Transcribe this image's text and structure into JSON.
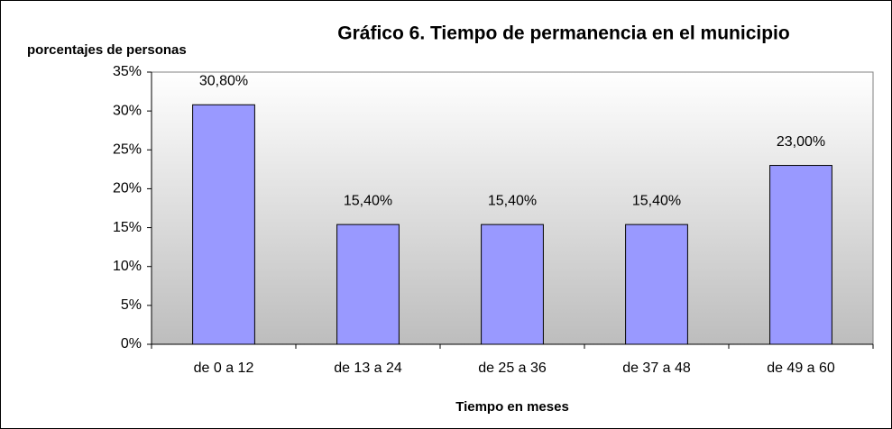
{
  "chart_data": {
    "type": "bar",
    "title": "Gráfico 6.  Tiempo de permanencia en el municipio",
    "y_axis_label": "porcentajes de personas",
    "x_axis_label": "Tiempo en meses",
    "categories": [
      "de 0 a 12",
      "de 13 a 24",
      "de 25 a 36",
      "de 37 a 48",
      "de 49 a 60"
    ],
    "values": [
      30.8,
      15.4,
      15.4,
      15.4,
      23.0
    ],
    "value_labels": [
      "30,80%",
      "15,40%",
      "15,40%",
      "15,40%",
      "23,00%"
    ],
    "color": "#9999ff",
    "ylim": [
      0,
      35
    ],
    "yticks": [
      {
        "value": 0,
        "label": "0%"
      },
      {
        "value": 5,
        "label": "5%"
      },
      {
        "value": 10,
        "label": "10%"
      },
      {
        "value": 15,
        "label": "15%"
      },
      {
        "value": 20,
        "label": "20%"
      },
      {
        "value": 25,
        "label": "25%"
      },
      {
        "value": 30,
        "label": "30%"
      },
      {
        "value": 35,
        "label": "35%"
      }
    ],
    "grid": false
  }
}
